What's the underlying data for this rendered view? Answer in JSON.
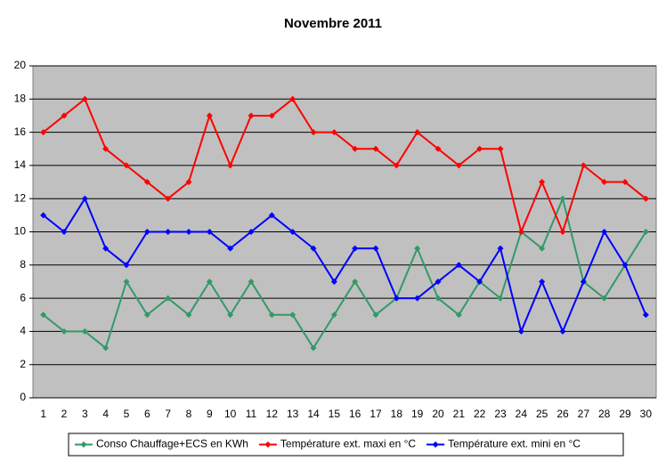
{
  "chart_data": {
    "type": "line",
    "title": "Novembre 2011",
    "categories": [
      "1",
      "2",
      "3",
      "4",
      "5",
      "6",
      "7",
      "8",
      "9",
      "10",
      "11",
      "12",
      "13",
      "14",
      "15",
      "16",
      "17",
      "18",
      "19",
      "20",
      "21",
      "22",
      "23",
      "24",
      "25",
      "26",
      "27",
      "28",
      "29",
      "30"
    ],
    "series": [
      {
        "name": "Conso Chauffage+ECS en KWh",
        "color": "#339966",
        "values": [
          5,
          4,
          4,
          3,
          7,
          5,
          6,
          5,
          7,
          5,
          7,
          5,
          5,
          3,
          5,
          7,
          5,
          6,
          9,
          6,
          5,
          7,
          6,
          10,
          9,
          12,
          7,
          6,
          8,
          10
        ]
      },
      {
        "name": "Température ext. maxi en °C",
        "color": "#ff0000",
        "values": [
          16,
          17,
          18,
          15,
          14,
          13,
          12,
          13,
          17,
          14,
          17,
          17,
          18,
          16,
          16,
          15,
          15,
          14,
          16,
          15,
          14,
          15,
          15,
          10,
          13,
          10,
          14,
          13,
          13,
          12
        ]
      },
      {
        "name": "Température ext. mini en °C",
        "color": "#0000ff",
        "values": [
          11,
          10,
          12,
          9,
          8,
          10,
          10,
          10,
          10,
          9,
          10,
          11,
          10,
          9,
          7,
          9,
          9,
          6,
          6,
          7,
          8,
          7,
          9,
          4,
          7,
          4,
          7,
          10,
          8,
          5
        ]
      }
    ],
    "ylim": [
      0,
      20
    ],
    "yticks": [
      0,
      2,
      4,
      6,
      8,
      10,
      12,
      14,
      16,
      18,
      20
    ],
    "grid": true,
    "legend": "bottom"
  }
}
